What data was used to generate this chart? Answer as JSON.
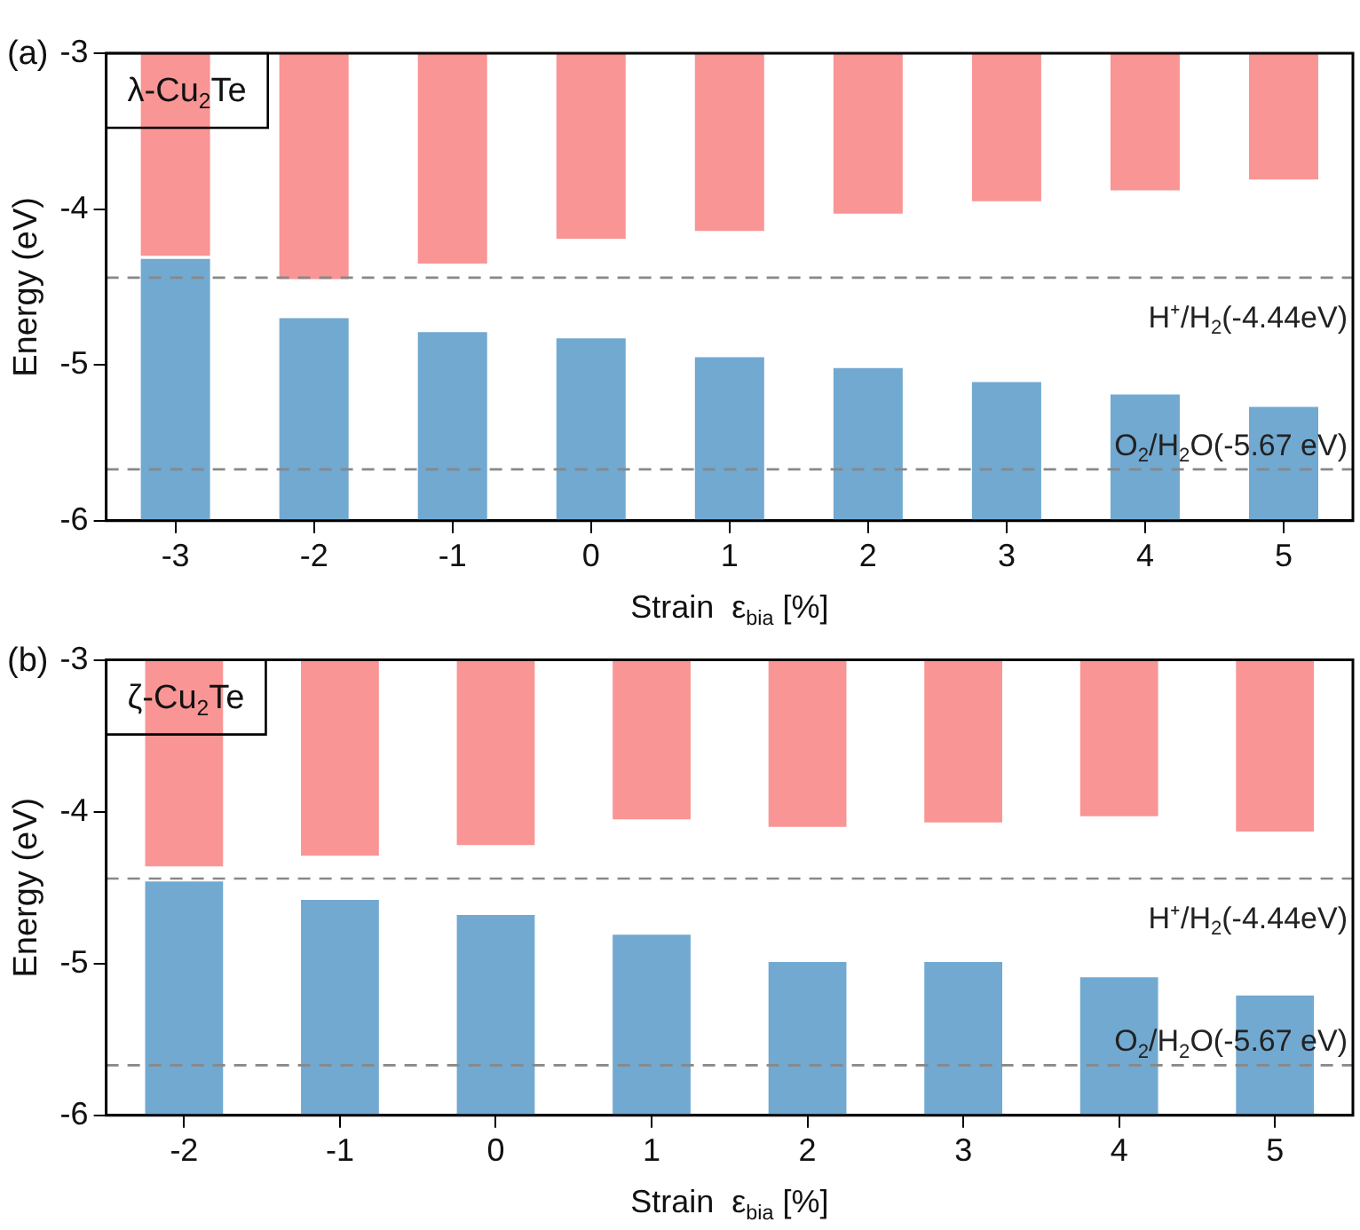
{
  "chart_data": [
    {
      "type": "bar",
      "title": "λ-Cu$_{2}$Te",
      "xlabel": "Strain  ε$_{bia}$ [%]",
      "ylabel": "Energy (eV)",
      "categories": [
        "-3",
        "-2",
        "-1",
        "0",
        "1",
        "2",
        "3",
        "4",
        "5"
      ],
      "series": [
        {
          "color": "#f99595",
          "base": [
            -3,
            -3,
            -3,
            -3,
            -3,
            -3,
            -3,
            -3,
            -3
          ],
          "values": [
            -1.3,
            -1.45,
            -1.35,
            -1.19,
            -1.14,
            -1.03,
            -0.95,
            -0.88,
            -0.81
          ]
        },
        {
          "color": "#72a9d1",
          "base": [
            -6,
            -6,
            -6,
            -6,
            -6,
            -6,
            -6,
            -6,
            -6
          ],
          "values": [
            1.68,
            1.3,
            1.21,
            1.17,
            1.05,
            0.98,
            0.89,
            0.81,
            0.73
          ]
        }
      ],
      "ylim": [
        -6,
        -3
      ],
      "yticks": [
        -6,
        -5,
        -4,
        -3
      ],
      "ref_lines": [
        {
          "axis": "y",
          "value": -4.44,
          "label": "H⁺/H$_{2}$(-4.44eV)",
          "color": "#888888",
          "line_style": "dashed"
        },
        {
          "axis": "y",
          "value": -5.67,
          "label": "O$_{2}$/H$_{2}$O(-5.67 eV)",
          "color": "#888888",
          "line_style": "dashed"
        }
      ],
      "annotations": [
        "(a)"
      ],
      "grid": false,
      "legend": false
    },
    {
      "type": "bar",
      "title": "ζ-Cu$_{2}$Te",
      "xlabel": "Strain  ε$_{bia}$ [%]",
      "ylabel": "Energy (eV)",
      "categories": [
        "-2",
        "-1",
        "0",
        "1",
        "2",
        "3",
        "4",
        "5"
      ],
      "series": [
        {
          "color": "#f99595",
          "base": [
            -3,
            -3,
            -3,
            -3,
            -3,
            -3,
            -3,
            -3
          ],
          "values": [
            -1.36,
            -1.29,
            -1.22,
            -1.05,
            -1.1,
            -1.07,
            -1.03,
            -1.13
          ]
        },
        {
          "color": "#72a9d1",
          "base": [
            -6,
            -6,
            -6,
            -6,
            -6,
            -6,
            -6,
            -6
          ],
          "values": [
            1.54,
            1.42,
            1.32,
            1.19,
            1.01,
            1.01,
            0.91,
            0.79
          ]
        }
      ],
      "ylim": [
        -6,
        -3
      ],
      "yticks": [
        -6,
        -5,
        -4,
        -3
      ],
      "ref_lines": [
        {
          "axis": "y",
          "value": -4.44,
          "label": "H⁺/H$_{2}$(-4.44eV)",
          "color": "#888888",
          "line_style": "dashed"
        },
        {
          "axis": "y",
          "value": -5.67,
          "label": "O$_{2}$/H$_{2}$O(-5.67 eV)",
          "color": "#888888",
          "line_style": "dashed"
        }
      ],
      "annotations": [
        "(b)"
      ],
      "grid": false,
      "legend": false
    }
  ]
}
